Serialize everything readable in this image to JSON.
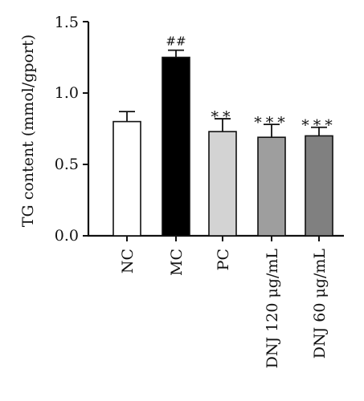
{
  "chart_data": {
    "type": "bar",
    "title": "",
    "xlabel": "",
    "ylabel": "TG content (mmol/gport)",
    "ylim": [
      0,
      1.5
    ],
    "yticks": [
      "0.0",
      "0.5",
      "1.0",
      "1.5"
    ],
    "grid": false,
    "categories": [
      "NC",
      "MC",
      "PC",
      "DNJ 120 μg/mL",
      "DNJ 60 μg/mL"
    ],
    "values": [
      0.8,
      1.25,
      0.73,
      0.69,
      0.7
    ],
    "errors": [
      0.07,
      0.05,
      0.09,
      0.09,
      0.06
    ],
    "significance": [
      "",
      "##",
      "**",
      "***",
      "***"
    ],
    "bar_colors": [
      "#ffffff",
      "#000000",
      "#d3d3d3",
      "#9e9e9e",
      "#808080"
    ]
  }
}
